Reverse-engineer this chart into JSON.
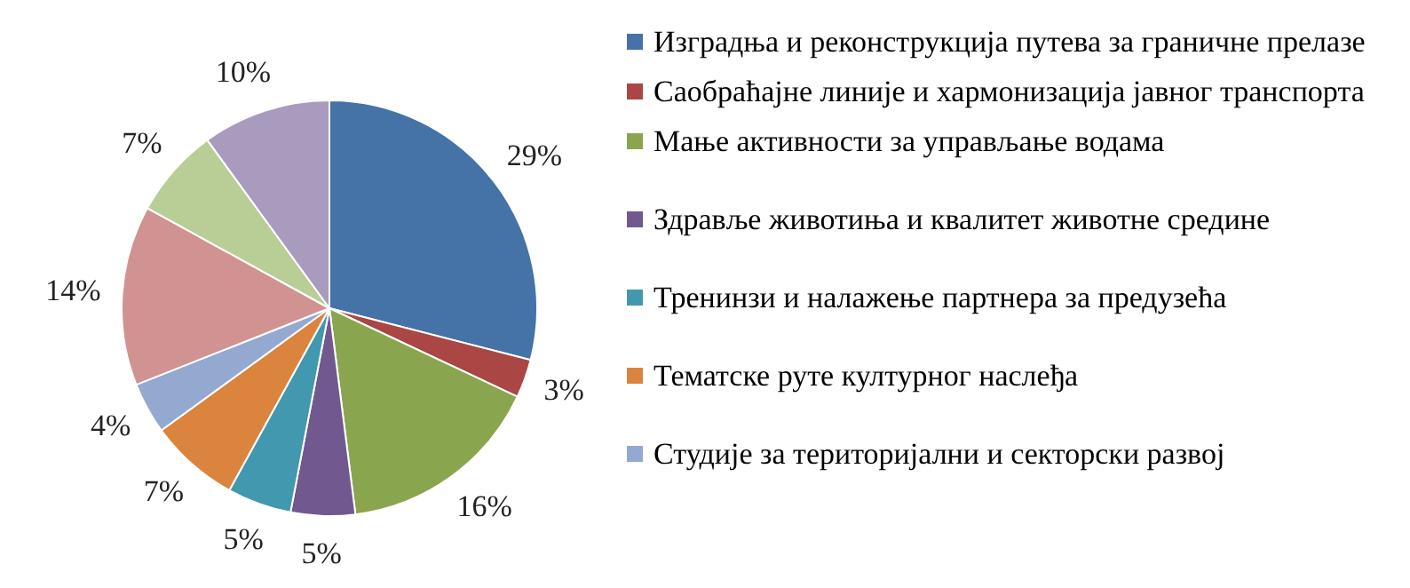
{
  "chart_data": {
    "type": "pie",
    "categories": [
      "Изградња и реконструкција путева за граничне прелазе",
      "Саобраћајне линије и хармонизација јавног транспорта",
      "Мање активности за управљање водама",
      "Здравље животиња и квалитет животне средине",
      "Тренинзи и налажење партнера за предузећа",
      "Тематске руте културног наслеђа",
      "Студије за територијални и секторски развој",
      null,
      null,
      null
    ],
    "values": [
      29,
      3,
      16,
      5,
      5,
      7,
      4,
      14,
      7,
      10
    ],
    "value_labels": [
      "29%",
      "3%",
      "16%",
      "5%",
      "5%",
      "7%",
      "4%",
      "14%",
      "7%",
      "10%"
    ],
    "colors": [
      "#4572a7",
      "#aa4643",
      "#89a54e",
      "#71588f",
      "#4198af",
      "#db843d",
      "#93a9cf",
      "#d19392",
      "#b9cd96",
      "#a99bbd"
    ],
    "legend": "right"
  }
}
